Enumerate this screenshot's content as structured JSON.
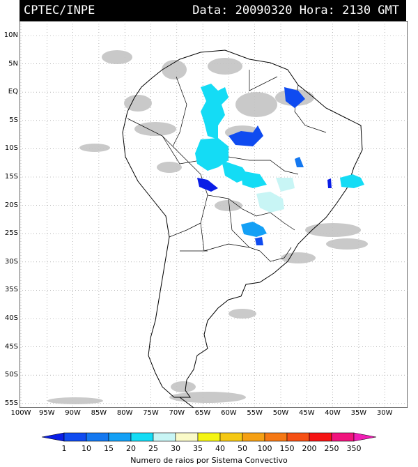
{
  "header": {
    "source": "CPTEC/INPE",
    "datetime": "Data: 20090320 Hora: 2130 GMT"
  },
  "map": {
    "lat_labels": [
      "10N",
      "5N",
      "EQ",
      "5S",
      "10S",
      "15S",
      "20S",
      "25S",
      "30S",
      "35S",
      "40S",
      "45S",
      "50S",
      "55S"
    ],
    "lon_labels": [
      "100W",
      "95W",
      "90W",
      "85W",
      "80W",
      "75W",
      "70W",
      "65W",
      "60W",
      "55W",
      "50W",
      "45W",
      "40W",
      "35W",
      "30W"
    ],
    "grid": "dotted",
    "colors": {
      "land_outline": "#000000",
      "cloud": "#bdbdbd",
      "background": "#ffffff"
    }
  },
  "colorbar": {
    "ticks": [
      "1",
      "10",
      "15",
      "20",
      "25",
      "30",
      "35",
      "40",
      "50",
      "100",
      "150",
      "200",
      "250",
      "350"
    ],
    "colors": [
      "#0a1ee6",
      "#0f4bf0",
      "#1478f0",
      "#14a0f5",
      "#14dcf5",
      "#c8f5f5",
      "#fafac8",
      "#f5f514",
      "#f5c814",
      "#f5a014",
      "#f57814",
      "#f55014",
      "#f51414",
      "#f0147d",
      "#f01eb4"
    ],
    "title": "Numero de raios por Sistema Convectivo"
  }
}
